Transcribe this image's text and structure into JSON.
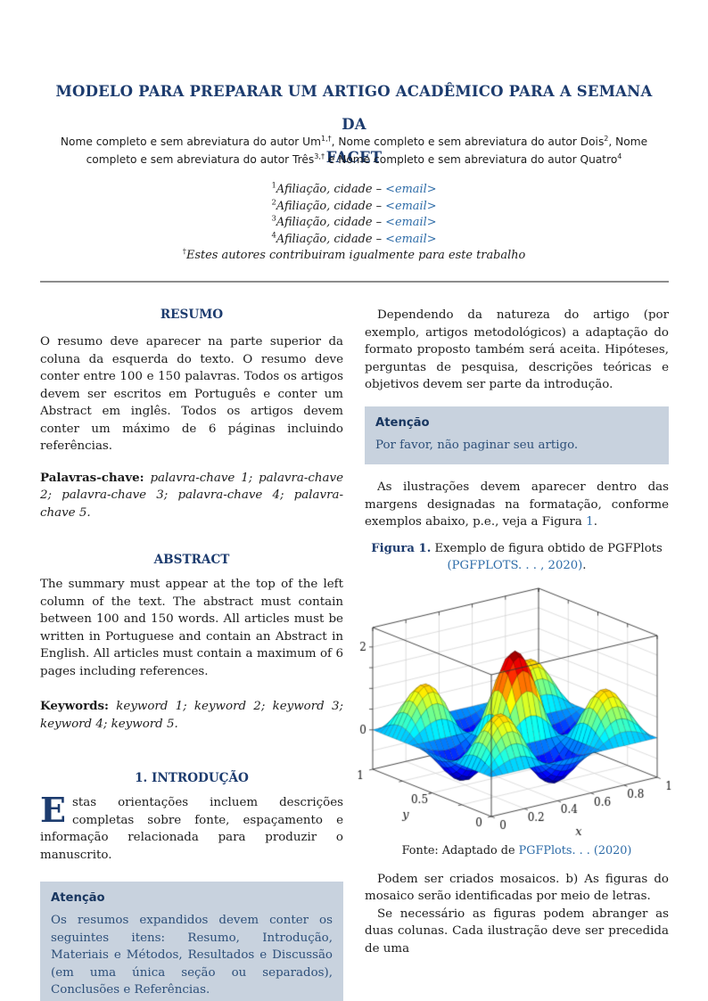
{
  "colors": {
    "navy": "#1c3b6e",
    "link_blue": "#2e6ca8",
    "attention_box_bg": "#c8d2de",
    "attention_text": "#2d4f79",
    "body_text": "#1c1c1c",
    "rule_gray": "#8c8c8c"
  },
  "header": {
    "title_lines": [
      "MODELO PARA PREPARAR UM ARTIGO ACADÊMICO PARA A SEMANA DA",
      "FACET"
    ],
    "authors": [
      {
        "t": "Nome completo e sem abreviatura do autor Um",
        "s": "plain"
      },
      {
        "t": "1,†",
        "s": "sup"
      },
      {
        "t": ", Nome completo e sem abreviatura do autor Dois",
        "s": "plain"
      },
      {
        "t": "2",
        "s": "sup"
      },
      {
        "t": ", Nome completo e sem abreviatura do autor Três",
        "s": "plain"
      },
      {
        "t": "3,†",
        "s": "sup"
      },
      {
        "t": " e Nome completo e sem abreviatura do autor Quatro",
        "s": "plain"
      },
      {
        "t": "4",
        "s": "sup"
      }
    ],
    "affiliations": [
      [
        {
          "t": "1",
          "s": "sup"
        },
        {
          "t": "Afiliação, cidade – ",
          "s": "italic"
        },
        {
          "t": "<email>",
          "s": "linkitalic",
          "n": "email-link-1"
        }
      ],
      [
        {
          "t": "2",
          "s": "sup"
        },
        {
          "t": "Afiliação, cidade – ",
          "s": "italic"
        },
        {
          "t": "<email>",
          "s": "linkitalic",
          "n": "email-link-2"
        }
      ],
      [
        {
          "t": "3",
          "s": "sup"
        },
        {
          "t": "Afiliação, cidade – ",
          "s": "italic"
        },
        {
          "t": "<email>",
          "s": "linkitalic",
          "n": "email-link-3"
        }
      ],
      [
        {
          "t": "4",
          "s": "sup"
        },
        {
          "t": "Afiliação, cidade – ",
          "s": "italic"
        },
        {
          "t": "<email>",
          "s": "linkitalic",
          "n": "email-link-4"
        }
      ]
    ],
    "footnote": [
      {
        "t": "†",
        "s": "sup"
      },
      {
        "t": "Estes autores contribuiram igualmente para este trabalho",
        "s": "italic"
      }
    ]
  },
  "left": {
    "resumo_heading": "RESUMO",
    "resumo_body": "O resumo deve aparecer na parte superior da coluna da esquerda do texto. O resumo deve conter entre 100 e 150 palavras. Todos os artigos devem ser escritos em Português e conter um Abstract em inglês. Todos os artigos devem conter um máximo de 6 páginas incluindo referências.",
    "palavras": [
      {
        "t": "Palavras-chave:",
        "s": "bold"
      },
      {
        "t": " ",
        "s": "plain"
      },
      {
        "t": "palavra-chave 1; palavra-chave 2; palavra-chave 3; palavra-chave 4; palavra-chave 5.",
        "s": "italic"
      }
    ],
    "abstract_heading": "ABSTRACT",
    "abstract_body": "The summary must appear at the top of the left column of the text. The abstract must contain between 100 and 150 words. All articles must be written in Portuguese and contain an Abstract in English. All articles must contain a maximum of 6 pages including references.",
    "keywords": [
      {
        "t": "Keywords:",
        "s": "bold"
      },
      {
        "t": " ",
        "s": "plain"
      },
      {
        "t": "keyword 1; keyword 2; keyword 3; keyword 4; keyword 5.",
        "s": "italic"
      }
    ],
    "intro_heading": "1.  INTRODUÇÃO",
    "intro_dropcap": "E",
    "intro_text": "stas orientações incluem descrições completas sobre fonte, espaçamento e informação relacionada para produzir o manuscrito.",
    "atencao": {
      "title": "Atenção",
      "body": "Os resumos expandidos devem conter os seguintes itens: Resumo, Introdução, Materiais e Métodos, Resultados e Discussão (em uma única seção ou separados), Conclusões e Referências."
    }
  },
  "right": {
    "p1": "Dependendo da natureza do artigo (por exemplo, artigos metodológicos) a adaptação do formato proposto também será aceita. Hipóteses, perguntas de pesquisa, descrições teóricas e objetivos devem ser parte da introdução.",
    "atencao": {
      "title": "Atenção",
      "body": "Por favor, não paginar seu artigo."
    },
    "p2": [
      {
        "t": "As ilustrações devem aparecer dentro das margens designadas na formatação, conforme exemplos abaixo, p.e., veja a Figura ",
        "s": "plain"
      },
      {
        "t": "1",
        "s": "link",
        "n": "figura-1-link"
      },
      {
        "t": ".",
        "s": "plain"
      }
    ],
    "caption": [
      {
        "t": "Figura 1.",
        "s": "boldnavy"
      },
      {
        "t": " Exemplo de figura obtido de PGFPlots ",
        "s": "plain"
      },
      {
        "t": "(PGFPLOTS. . . , 2020)",
        "s": "link",
        "n": "pgfplots-citation-link"
      },
      {
        "t": ".",
        "s": "plain"
      }
    ],
    "fonte": [
      {
        "t": "Fonte: Adaptado de ",
        "s": "plain"
      },
      {
        "t": "PGFPlots. . . (2020)",
        "s": "link",
        "n": "pgfplots-fonte-link"
      }
    ],
    "p3": "Podem ser criados mosaicos.  b) As figuras do mosaico serão identificadas por meio de letras.",
    "p4": "Se necessário as figuras podem abranger as duas colunas. Cada ilustração deve ser precedida de uma"
  },
  "chart_data": {
    "type": "surface3d",
    "title": "",
    "xlabel": "x",
    "ylabel": "y",
    "x_ticks": [
      0,
      0.2,
      0.4,
      0.6,
      0.8,
      1
    ],
    "y_ticks": [
      0,
      0.5,
      1
    ],
    "z_label_ticks": [
      0,
      2
    ],
    "z_tick_step": 0.5,
    "x_grid": [
      0.2,
      0.4,
      0.6,
      0.8
    ],
    "y_grid": [
      0.25,
      0.5,
      0.75
    ],
    "x_range": [
      0,
      1
    ],
    "y_range": [
      0,
      1
    ],
    "z_range": [
      -0.95,
      2.47
    ],
    "samples": 31,
    "colormap": "jet",
    "legend": "none",
    "grid": true,
    "surface": {
      "kx": 3,
      "ky": 3,
      "base": 0.35,
      "peak": 1.65,
      "decay": 3.5,
      "cx": 0.5,
      "cy": 0.5,
      "neg_scale": 0.55
    },
    "function": "z = sin(kx*pi*x)*sin(ky*pi*y)*(base + peak*exp(-decay*((x-cx)^2+(y-cy)^2))), negative lobes scaled by neg_scale"
  }
}
